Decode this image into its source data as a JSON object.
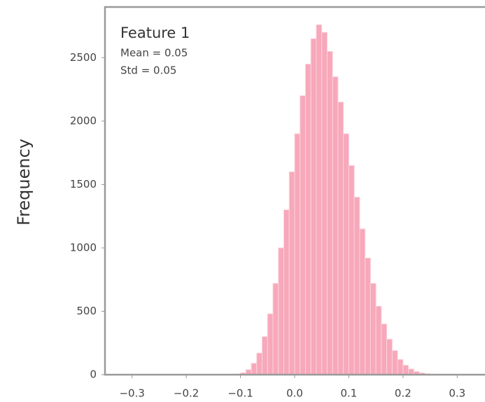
{
  "chart_data": {
    "type": "histogram",
    "ylabel": "Frequency",
    "annotations": [
      "Feature 1",
      "Mean = 0.05",
      "Std = 0.05"
    ],
    "bins": [
      -0.12,
      -0.11,
      -0.1,
      -0.09,
      -0.08,
      -0.07,
      -0.06,
      -0.05,
      -0.04,
      -0.03,
      -0.02,
      -0.01,
      0.0,
      0.01,
      0.02,
      0.03,
      0.04,
      0.05,
      0.06,
      0.07,
      0.08,
      0.09,
      0.1,
      0.11,
      0.12,
      0.13,
      0.14,
      0.15,
      0.16,
      0.17,
      0.18,
      0.19,
      0.2,
      0.21,
      0.22,
      0.23,
      0.24,
      0.25,
      0.26
    ],
    "values": [
      2,
      5,
      15,
      40,
      90,
      170,
      300,
      480,
      720,
      1000,
      1300,
      1600,
      1900,
      2200,
      2450,
      2650,
      2760,
      2700,
      2550,
      2350,
      2150,
      1900,
      1650,
      1400,
      1150,
      920,
      720,
      540,
      400,
      280,
      190,
      120,
      75,
      45,
      25,
      14,
      7,
      3
    ],
    "color": "#f7a8ba",
    "xlim": [
      -0.35,
      0.35
    ],
    "xticks": [
      {
        "value": -0.3,
        "label": "−0.3"
      },
      {
        "value": -0.2,
        "label": "−0.2"
      },
      {
        "value": -0.1,
        "label": "−0.1"
      },
      {
        "value": 0,
        "label": "0.0"
      },
      0.1,
      0.2,
      0.3
    ],
    "ylim": [
      0,
      2900
    ],
    "yticks": [
      0,
      500,
      1000,
      1500,
      2000,
      2500
    ]
  }
}
